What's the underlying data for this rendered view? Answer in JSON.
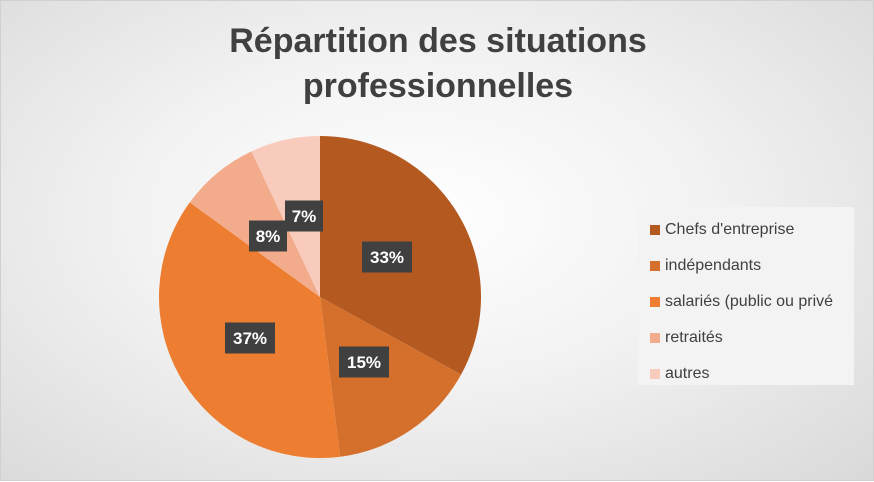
{
  "chart_data": {
    "type": "pie",
    "title": [
      "Répartition des situations",
      "professionnelles"
    ],
    "series": [
      {
        "name": "Chefs d'entreprise",
        "value": 33,
        "label": "33%",
        "color": "#b4591f"
      },
      {
        "name": "indépendants",
        "value": 15,
        "label": "15%",
        "color": "#d4702c"
      },
      {
        "name": "salariés (public ou privé",
        "value": 37,
        "label": "37%",
        "color": "#ed7d31"
      },
      {
        "name": "retraités",
        "value": 8,
        "label": "8%",
        "color": "#f2ac8c"
      },
      {
        "name": "autres",
        "value": 7,
        "label": "7%",
        "color": "#f8cbbd"
      }
    ],
    "legend_position": "right",
    "data_label_style": "dark callout boxes with white bold text"
  }
}
